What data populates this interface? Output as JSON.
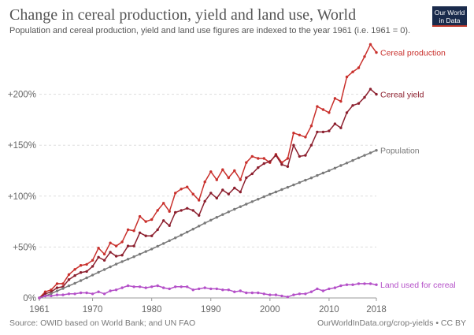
{
  "title": "Change in cereal production, yield and land use, World",
  "subtitle": "Population and cereal production, yield and land use figures are indexed to the year 1961 (i.e. 1961 = 0).",
  "logo": {
    "line1": "Our World",
    "line2": "in Data"
  },
  "footer": {
    "source": "Source: OWID based on World Bank; and UN FAO",
    "license": "OurWorldInData.org/crop-yields • CC BY"
  },
  "colors": {
    "production": "#c9302c",
    "yield": "#8c1f2e",
    "population": "#7a7a7a",
    "land": "#b450c8",
    "grid": "#dddddd",
    "axis": "#666666"
  },
  "chart_data": {
    "type": "line",
    "title": "Change in cereal production, yield and land use, World",
    "xlabel": "",
    "ylabel": "",
    "xlim": [
      1961,
      2018
    ],
    "ylim": [
      0,
      250
    ],
    "x_ticks": [
      1961,
      1970,
      1980,
      1990,
      2000,
      2010,
      2018
    ],
    "y_ticks": [
      0,
      50,
      100,
      150,
      200
    ],
    "y_tick_labels": [
      "0%",
      "+50%",
      "+100%",
      "+150%",
      "+200%"
    ],
    "x": [
      1961,
      1962,
      1963,
      1964,
      1965,
      1966,
      1967,
      1968,
      1969,
      1970,
      1971,
      1972,
      1973,
      1974,
      1975,
      1976,
      1977,
      1978,
      1979,
      1980,
      1981,
      1982,
      1983,
      1984,
      1985,
      1986,
      1987,
      1988,
      1989,
      1990,
      1991,
      1992,
      1993,
      1994,
      1995,
      1996,
      1997,
      1998,
      1999,
      2000,
      2001,
      2002,
      2003,
      2004,
      2005,
      2006,
      2007,
      2008,
      2009,
      2010,
      2011,
      2012,
      2013,
      2014,
      2015,
      2016,
      2017,
      2018
    ],
    "series": [
      {
        "name": "Cereal production",
        "key": "production",
        "values": [
          0,
          6,
          8,
          14,
          14,
          23,
          28,
          32,
          33,
          37,
          49,
          43,
          54,
          51,
          55,
          67,
          66,
          80,
          75,
          77,
          86,
          93,
          85,
          103,
          107,
          109,
          102,
          96,
          114,
          124,
          116,
          126,
          118,
          125,
          116,
          133,
          139,
          137,
          137,
          133,
          141,
          133,
          137,
          162,
          160,
          158,
          169,
          188,
          185,
          182,
          196,
          193,
          217,
          222,
          226,
          237,
          249,
          241
        ]
      },
      {
        "name": "Cereal yield",
        "key": "yield",
        "values": [
          0,
          4,
          6,
          10,
          11,
          18,
          22,
          25,
          26,
          31,
          40,
          37,
          45,
          41,
          42,
          51,
          51,
          64,
          61,
          61,
          67,
          76,
          71,
          84,
          86,
          88,
          86,
          81,
          95,
          103,
          98,
          106,
          102,
          108,
          104,
          118,
          122,
          128,
          132,
          134,
          140,
          131,
          129,
          150,
          139,
          140,
          150,
          163,
          163,
          164,
          171,
          167,
          182,
          189,
          191,
          197,
          205,
          200
        ]
      },
      {
        "name": "Population",
        "key": "population",
        "values": [
          0,
          1.9,
          4.3,
          6.8,
          9.3,
          11.9,
          14.4,
          17,
          19.7,
          22.5,
          25.2,
          27.9,
          30.6,
          33.2,
          35.7,
          38.1,
          40.5,
          43,
          45.6,
          48.1,
          50.8,
          53.5,
          56.3,
          59,
          61.8,
          64.7,
          67.6,
          70.6,
          73.5,
          76.4,
          79.2,
          81.9,
          84.5,
          87.1,
          89.6,
          92.1,
          94.6,
          97,
          99.4,
          101.8,
          104.1,
          106.4,
          108.7,
          111,
          113.3,
          115.6,
          117.9,
          120.3,
          122.7,
          125.1,
          127.5,
          130,
          132.5,
          135,
          137.5,
          140,
          142.5,
          145
        ]
      },
      {
        "name": "Land used for cereal",
        "key": "land",
        "values": [
          0,
          2,
          2,
          3,
          3,
          4,
          4,
          5,
          5,
          4,
          6,
          4,
          7,
          8,
          10,
          12,
          11,
          11,
          10,
          11,
          12,
          10,
          9,
          11,
          11,
          11,
          8,
          9,
          10,
          9,
          9,
          8,
          8,
          6,
          7,
          5,
          5,
          5,
          4,
          3,
          3,
          2,
          1,
          3,
          4,
          4,
          6,
          9,
          7,
          9,
          10,
          12,
          13,
          13,
          14,
          14,
          14,
          13
        ]
      }
    ]
  }
}
